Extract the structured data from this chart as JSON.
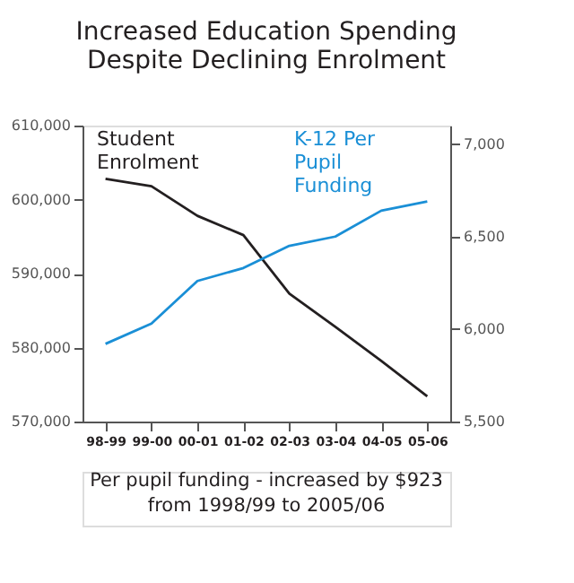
{
  "chart_data": {
    "type": "line",
    "title": "Increased Education Spending Despite Declining Enrolment",
    "categories": [
      "98-99",
      "99-00",
      "00-01",
      "01-02",
      "02-03",
      "03-04",
      "04-05",
      "05-06"
    ],
    "series": [
      {
        "name": "Student Enrolment",
        "color": "#231f20",
        "values": [
          602800,
          601800,
          597800,
          595200,
          587300,
          582800,
          578200,
          573400
        ]
      },
      {
        "name": "K-12 Per Pupil Funding",
        "color": "#1a8fd6",
        "axis": "y2",
        "values": [
          5920,
          6030,
          6260,
          6330,
          6450,
          6500,
          6640,
          6690
        ]
      }
    ],
    "ylim": [
      570000,
      610000
    ],
    "yticks": [
      {
        "value": 570000,
        "label": "570,000"
      },
      {
        "value": 580000,
        "label": "580,000"
      },
      {
        "value": 590000,
        "label": "590,000"
      },
      {
        "value": 600000,
        "label": "600,000"
      },
      {
        "value": 610000,
        "label": "610,000"
      }
    ],
    "y2lim": [
      5500,
      7100
    ],
    "y2ticks": [
      {
        "value": 5500,
        "label": "5,500"
      },
      {
        "value": 6000,
        "label": "6,000"
      },
      {
        "value": 6500,
        "label": "6,500"
      },
      {
        "value": 7000,
        "label": "7,000"
      }
    ],
    "annotations": [
      "Per pupil funding - increased by $923 from 1998/99 to 2005/06"
    ],
    "grid": false,
    "legend": false,
    "marker": "none",
    "line_style": "solid"
  }
}
